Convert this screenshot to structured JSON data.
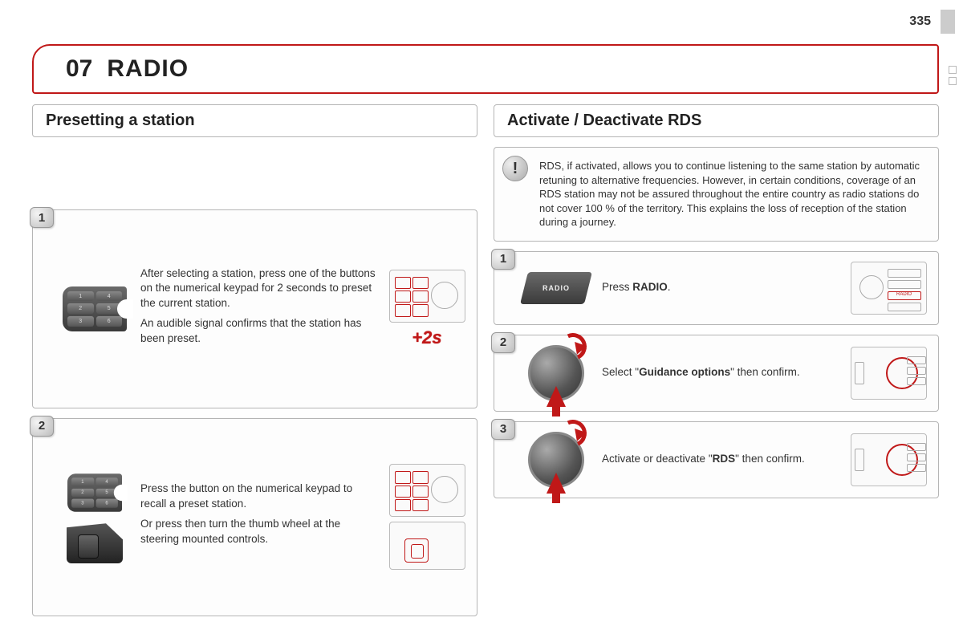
{
  "page_number": "335",
  "chapter": {
    "number": "07",
    "title": "RADIO"
  },
  "accent_color": "#c01818",
  "border_color": "#b5b5b5",
  "left": {
    "heading": "Presetting a station",
    "steps": [
      {
        "num": "1",
        "text1": "After selecting a station, press one of the buttons on the numerical keypad for 2 seconds to preset the current station.",
        "text2": "An audible signal confirms that the station has been preset.",
        "overlay": "+2s"
      },
      {
        "num": "2",
        "text1": "Press the button on the numerical keypad to recall a preset station.",
        "text2": "Or press then turn the thumb wheel at the steering mounted controls."
      }
    ]
  },
  "right": {
    "heading": "Activate / Deactivate RDS",
    "info": "RDS, if activated, allows you to continue listening to the same station by automatic retuning to alternative frequencies. However, in certain conditions, coverage of an RDS station may not be assured throughout the entire country as radio stations do not cover 100 % of the territory. This explains the loss of reception of the station during a journey.",
    "steps": [
      {
        "num": "1",
        "button_label": "RADIO",
        "text_prefix": "Press ",
        "text_bold": "RADIO",
        "text_suffix": "."
      },
      {
        "num": "2",
        "text_prefix": "Select \"",
        "text_bold": "Guidance options",
        "text_suffix": "\" then confirm."
      },
      {
        "num": "3",
        "text_prefix": "Activate or deactivate \"",
        "text_bold": "RDS",
        "text_suffix": "\" then confirm."
      }
    ]
  }
}
